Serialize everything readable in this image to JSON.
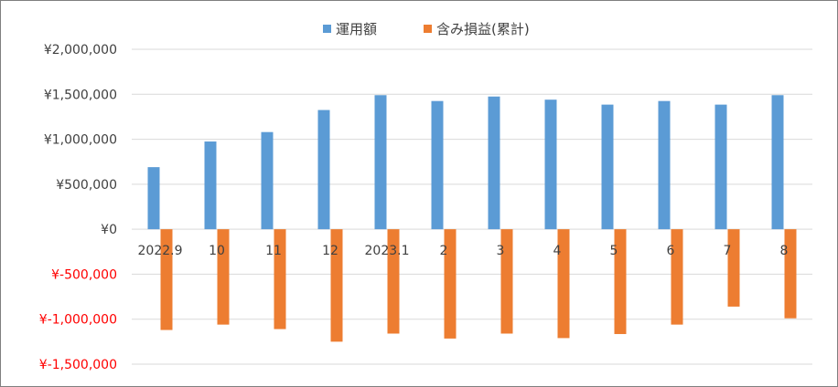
{
  "chart_data": {
    "type": "bar",
    "title": "",
    "xlabel": "",
    "ylabel": "",
    "categories": [
      "2022.9",
      "10",
      "11",
      "12",
      "2023.1",
      "2",
      "3",
      "4",
      "5",
      "6",
      "7",
      "8"
    ],
    "series": [
      {
        "name": "運用額",
        "color": "#5b9bd5",
        "values": [
          690000,
          975000,
          1080000,
          1325000,
          1490000,
          1425000,
          1475000,
          1440000,
          1385000,
          1425000,
          1385000,
          1490000
        ]
      },
      {
        "name": "含み損益(累計)",
        "color": "#ed7d31",
        "values": [
          -1120000,
          -1060000,
          -1110000,
          -1250000,
          -1160000,
          -1215000,
          -1160000,
          -1210000,
          -1165000,
          -1060000,
          -860000,
          -990000
        ]
      }
    ],
    "ylim": [
      -1500000,
      2000000
    ],
    "yticks": [
      2000000,
      1500000,
      1000000,
      500000,
      0,
      -500000,
      -1000000,
      -1500000
    ],
    "ytick_labels": [
      "¥2,000,000",
      "¥1,500,000",
      "¥1,000,000",
      "¥500,000",
      "¥0",
      "¥-500,000",
      "¥-1,000,000",
      "¥-1,500,000"
    ],
    "negative_label_color": "#ff0000",
    "legend_position": "top-center",
    "grid": true
  }
}
